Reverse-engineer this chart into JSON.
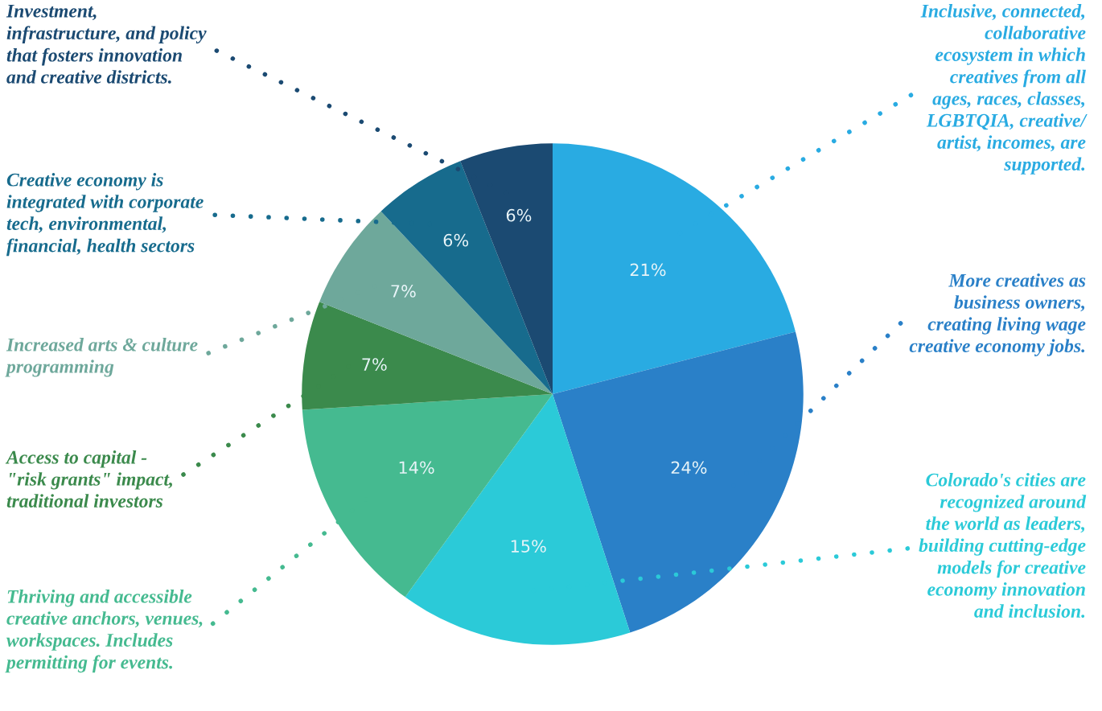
{
  "chart_data": {
    "type": "pie",
    "categories": [
      "Inclusive, connected,\ncollaborative\necosystem in which\ncreatives from all\nages, races, classes,\nLGBTQIA, creative/\nartist, incomes, are\nsupported.",
      "More creatives as\nbusiness owners,\ncreating living wage\ncreative economy jobs.",
      "Colorado's cities are\nrecognized around\nthe world as leaders,\nbuilding cutting-edge\nmodels for creative\neconomy innovation\nand inclusion.",
      "Thriving and accessible\ncreative anchors, venues,\nworkspaces. Includes\npermitting for events.",
      "Access to capital -\n\"risk grants\" impact,\ntraditional investors",
      "Increased arts & culture\nprogramming",
      "Creative economy is\nintegrated with corporate\ntech, environmental,\nfinancial, health sectors",
      "Investment,\ninfrastructure, and policy\nthat fosters innovation\nand creative districts."
    ],
    "values": [
      21,
      24,
      15,
      14,
      7,
      7,
      6,
      6
    ],
    "value_labels": [
      "21%",
      "24%",
      "15%",
      "14%",
      "7%",
      "7%",
      "6%",
      "6%"
    ],
    "colors": [
      "#29abe2",
      "#2a80c8",
      "#2bcad8",
      "#45ba90",
      "#3b8a4c",
      "#6ea89b",
      "#176b8d",
      "#1b4a72"
    ],
    "legend": false
  }
}
